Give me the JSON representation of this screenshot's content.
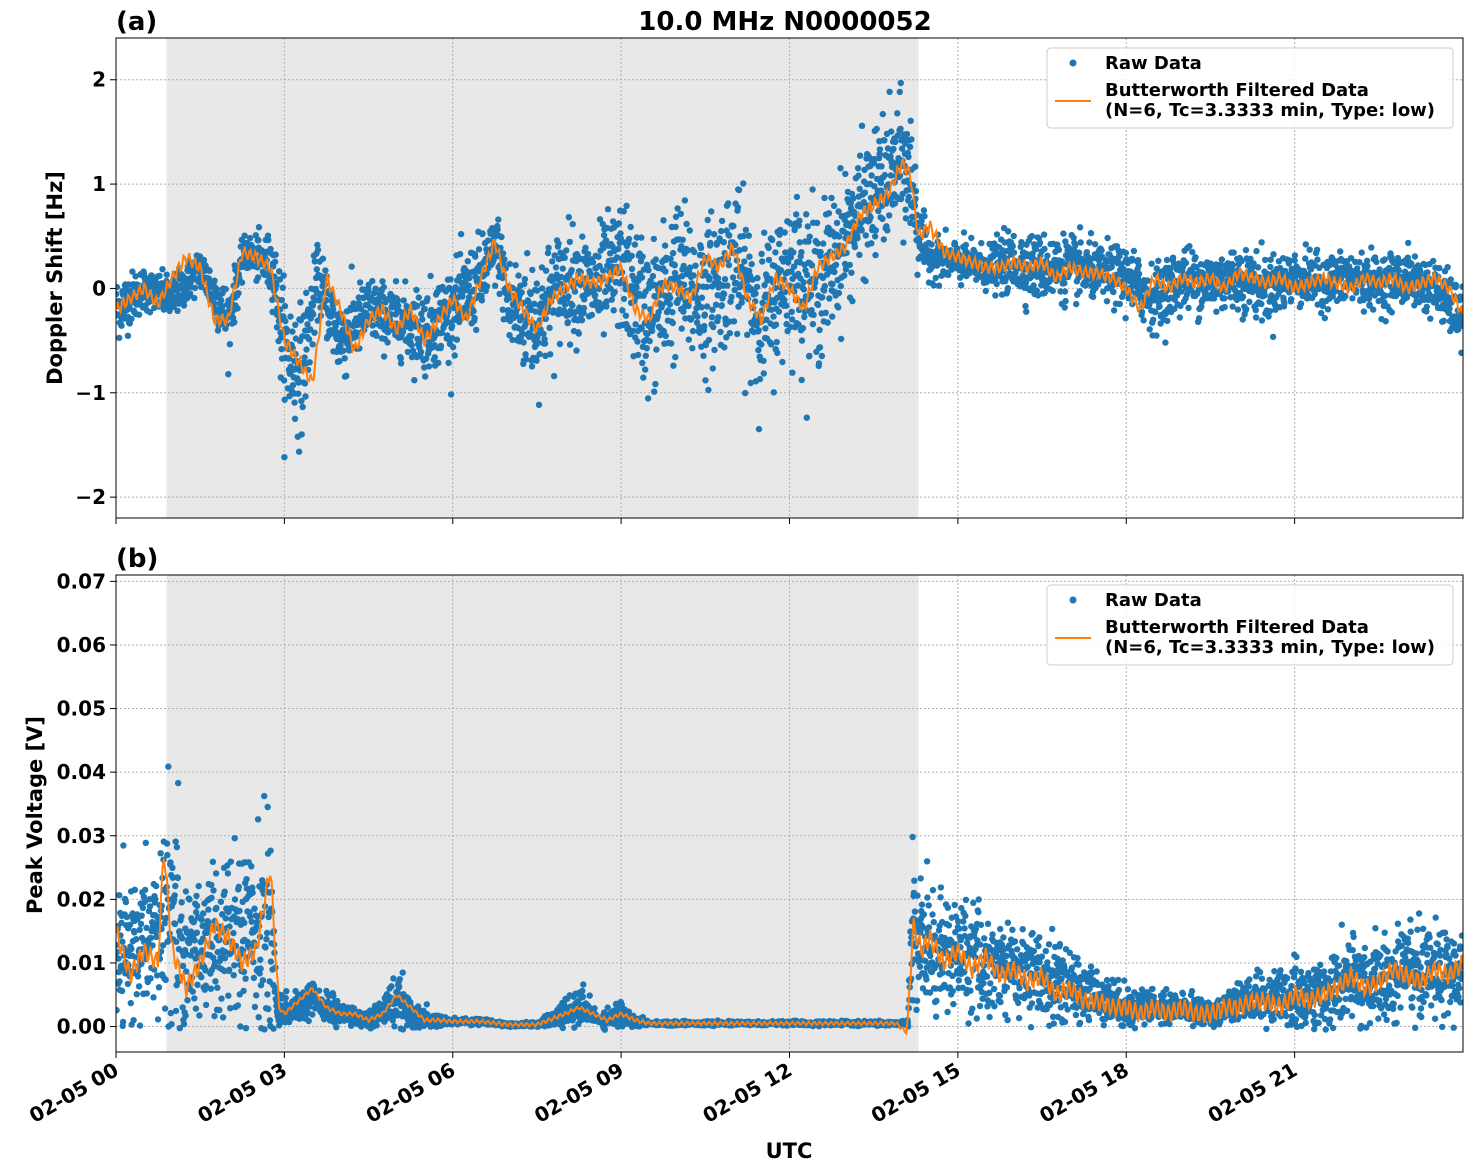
{
  "figure": {
    "title": "10.0 MHz N0000052",
    "xlabel": "UTC",
    "colors": {
      "raw": "#1f77b4",
      "filtered": "#ff7f0e",
      "shade": "#e8e8e8",
      "grid": "#b0b0b0"
    }
  },
  "chart_data": [
    {
      "type": "scatter",
      "panel_label": "(a)",
      "title": "10.0 MHz N0000052",
      "xlabel": "",
      "ylabel": "Doppler Shift [Hz]",
      "x_unit": "hours UTC on 02-05",
      "xlim": [
        0,
        24
      ],
      "ylim": [
        -2.2,
        2.4
      ],
      "yticks": [
        -2,
        -1,
        0,
        1,
        2
      ],
      "ytick_labels": [
        "−2",
        "−1",
        "0",
        "1",
        "2"
      ],
      "grid": true,
      "legend_position": "top-right",
      "shaded_region": [
        0.9,
        14.3
      ],
      "series": [
        {
          "name": "Raw Data",
          "style": "points",
          "x": [
            0,
            0.5,
            1,
            1.5,
            2,
            2.3,
            2.8,
            3,
            3.3,
            3.6,
            4,
            4.5,
            5,
            5.5,
            6,
            6.5,
            6.8,
            7,
            7.5,
            8,
            8.5,
            9,
            9.5,
            10,
            10.5,
            11,
            11.5,
            12,
            12.5,
            13,
            13.5,
            14,
            14.2,
            14.3,
            14.5,
            15,
            15.5,
            16,
            16.5,
            17,
            17.5,
            18,
            18.5,
            19,
            19.5,
            20,
            20.5,
            21,
            21.5,
            22,
            22.5,
            23,
            23.5,
            24
          ],
          "y_center": [
            -0.2,
            0.0,
            -0.1,
            0.2,
            -0.3,
            0.35,
            0.2,
            -0.6,
            -0.8,
            0.1,
            -0.5,
            -0.2,
            -0.3,
            -0.4,
            -0.2,
            0.1,
            0.4,
            -0.2,
            -0.3,
            0.1,
            0.0,
            0.2,
            -0.3,
            0.1,
            -0.1,
            0.3,
            -0.3,
            0.2,
            0.0,
            0.5,
            0.9,
            1.2,
            1.0,
            0.5,
            0.3,
            0.25,
            0.2,
            0.25,
            0.2,
            0.2,
            0.15,
            0.1,
            -0.1,
            0.1,
            0.05,
            0.1,
            0.0,
            0.1,
            0.05,
            0.1,
            0.05,
            0.1,
            0.0,
            -0.3
          ],
          "y_spread": [
            0.3,
            0.2,
            0.2,
            0.2,
            0.3,
            0.15,
            0.3,
            0.6,
            0.6,
            0.3,
            0.4,
            0.3,
            0.3,
            0.4,
            0.4,
            0.4,
            0.3,
            0.5,
            0.6,
            0.5,
            0.5,
            0.6,
            0.7,
            0.7,
            0.7,
            0.7,
            0.7,
            0.7,
            0.7,
            0.6,
            0.6,
            0.6,
            0.7,
            0.3,
            0.2,
            0.2,
            0.2,
            0.3,
            0.3,
            0.3,
            0.25,
            0.3,
            0.3,
            0.3,
            0.3,
            0.3,
            0.3,
            0.25,
            0.25,
            0.25,
            0.25,
            0.25,
            0.25,
            0.3
          ]
        },
        {
          "name": "Butterworth Filtered Data\n(N=6, Tc=3.3333 min, Type: low)",
          "style": "line",
          "x": [
            0,
            0.25,
            0.5,
            0.75,
            1,
            1.25,
            1.5,
            1.75,
            2,
            2.25,
            2.5,
            2.75,
            3,
            3.25,
            3.5,
            3.75,
            4,
            4.25,
            4.5,
            4.75,
            5,
            5.25,
            5.5,
            5.75,
            6,
            6.25,
            6.5,
            6.75,
            7,
            7.25,
            7.5,
            7.75,
            8,
            8.25,
            8.5,
            8.75,
            9,
            9.25,
            9.5,
            9.75,
            10,
            10.25,
            10.5,
            10.75,
            11,
            11.25,
            11.5,
            11.75,
            12,
            12.25,
            12.5,
            12.75,
            13,
            13.25,
            13.5,
            13.75,
            14,
            14.15,
            14.3,
            14.5,
            14.75,
            15,
            15.25,
            15.5,
            15.75,
            16,
            16.25,
            16.5,
            16.75,
            17,
            17.25,
            17.5,
            17.75,
            18,
            18.25,
            18.5,
            18.75,
            19,
            19.25,
            19.5,
            19.75,
            20,
            20.25,
            20.5,
            20.75,
            21,
            21.25,
            21.5,
            21.75,
            22,
            22.25,
            22.5,
            22.75,
            23,
            23.25,
            23.5,
            23.75,
            24
          ],
          "y": [
            -0.2,
            -0.1,
            0.0,
            -0.15,
            0.1,
            0.3,
            0.2,
            -0.3,
            -0.3,
            0.35,
            0.3,
            0.2,
            -0.5,
            -0.7,
            -0.9,
            0.1,
            -0.2,
            -0.6,
            -0.3,
            -0.2,
            -0.4,
            -0.2,
            -0.5,
            -0.3,
            -0.1,
            -0.3,
            0.1,
            0.45,
            0.0,
            -0.2,
            -0.4,
            -0.1,
            0.0,
            0.1,
            0.05,
            0.1,
            0.2,
            -0.2,
            -0.3,
            0.05,
            0.0,
            -0.1,
            0.3,
            0.2,
            0.4,
            -0.1,
            -0.3,
            0.1,
            0.0,
            -0.2,
            0.2,
            0.3,
            0.4,
            0.7,
            0.8,
            0.9,
            1.2,
            1.1,
            0.5,
            0.6,
            0.35,
            0.3,
            0.25,
            0.2,
            0.2,
            0.25,
            0.2,
            0.25,
            0.1,
            0.2,
            0.15,
            0.15,
            0.1,
            0.0,
            -0.2,
            0.1,
            0.0,
            0.1,
            0.05,
            0.1,
            0.0,
            0.15,
            0.1,
            0.05,
            0.1,
            0.0,
            0.05,
            0.1,
            0.05,
            0.0,
            0.1,
            0.05,
            0.1,
            0.0,
            0.05,
            0.1,
            0.0,
            -0.25
          ]
        }
      ]
    },
    {
      "type": "scatter",
      "panel_label": "(b)",
      "title": "",
      "xlabel": "UTC",
      "ylabel": "Peak Voltage [V]",
      "x_unit": "hours UTC on 02-05",
      "xlim": [
        0,
        24
      ],
      "ylim": [
        -0.004,
        0.071
      ],
      "yticks": [
        0.0,
        0.01,
        0.02,
        0.03,
        0.04,
        0.05,
        0.06,
        0.07
      ],
      "ytick_labels": [
        "0.00",
        "0.01",
        "0.02",
        "0.03",
        "0.04",
        "0.05",
        "0.06",
        "0.07"
      ],
      "xticks": [
        0,
        3,
        6,
        9,
        12,
        15,
        18,
        21
      ],
      "xtick_labels": [
        "02-05 00",
        "02-05 03",
        "02-05 06",
        "02-05 09",
        "02-05 12",
        "02-05 15",
        "02-05 18",
        "02-05 21"
      ],
      "grid": true,
      "legend_position": "top-right",
      "shaded_region": [
        0.9,
        14.3
      ],
      "series": [
        {
          "name": "Raw Data",
          "style": "points",
          "x": [
            0,
            0.4,
            0.8,
            0.9,
            1.2,
            1.6,
            2.0,
            2.4,
            2.75,
            2.85,
            3.0,
            3.5,
            4.0,
            4.5,
            5.0,
            5.3,
            5.6,
            6.0,
            6.5,
            7.0,
            7.5,
            8.0,
            8.3,
            8.6,
            9.0,
            9.2,
            9.5,
            10,
            11,
            12,
            13,
            13.9,
            14.1,
            14.2,
            14.5,
            15,
            15.5,
            16,
            16.5,
            17,
            17.5,
            18,
            18.5,
            19,
            19.5,
            20,
            20.5,
            21,
            21.5,
            22,
            22.5,
            23,
            23.5,
            24
          ],
          "y_center": [
            0.01,
            0.012,
            0.015,
            0.02,
            0.012,
            0.013,
            0.015,
            0.014,
            0.016,
            0.003,
            0.002,
            0.004,
            0.002,
            0.001,
            0.004,
            0.002,
            0.001,
            0.0008,
            0.0008,
            0.0003,
            0.0003,
            0.002,
            0.003,
            0.001,
            0.002,
            0.001,
            0.0005,
            0.0005,
            0.0005,
            0.0005,
            0.0005,
            0.0005,
            0.0005,
            0.015,
            0.012,
            0.011,
            0.01,
            0.009,
            0.008,
            0.006,
            0.005,
            0.003,
            0.003,
            0.003,
            0.002,
            0.004,
            0.004,
            0.005,
            0.005,
            0.007,
            0.007,
            0.008,
            0.008,
            0.008
          ],
          "y_spread": [
            0.01,
            0.01,
            0.014,
            0.02,
            0.012,
            0.012,
            0.012,
            0.012,
            0.02,
            0.003,
            0.002,
            0.003,
            0.002,
            0.001,
            0.004,
            0.002,
            0.001,
            0.0005,
            0.0005,
            0.0003,
            0.0003,
            0.002,
            0.003,
            0.001,
            0.002,
            0.001,
            0.0003,
            0.0003,
            0.0003,
            0.0003,
            0.0003,
            0.0003,
            0.0003,
            0.012,
            0.01,
            0.008,
            0.008,
            0.007,
            0.007,
            0.005,
            0.004,
            0.003,
            0.003,
            0.002,
            0.002,
            0.003,
            0.004,
            0.005,
            0.005,
            0.007,
            0.007,
            0.007,
            0.007,
            0.006
          ]
        },
        {
          "name": "Butterworth Filtered Data\n(N=6, Tc=3.3333 min, Type: low)",
          "style": "line",
          "x": [
            0,
            0.25,
            0.5,
            0.75,
            0.85,
            1.0,
            1.25,
            1.5,
            1.75,
            2.0,
            2.25,
            2.5,
            2.75,
            2.9,
            3.0,
            3.25,
            3.5,
            3.75,
            4.0,
            4.25,
            4.5,
            4.75,
            5.0,
            5.25,
            5.5,
            5.75,
            6.0,
            6.5,
            7.0,
            7.5,
            8.0,
            8.25,
            8.5,
            8.75,
            9.0,
            9.25,
            9.5,
            10,
            11,
            12,
            13,
            13.9,
            14.1,
            14.2,
            14.35,
            14.5,
            14.75,
            15,
            15.25,
            15.5,
            15.75,
            16,
            16.25,
            16.5,
            16.75,
            17,
            17.25,
            17.5,
            17.75,
            18,
            18.25,
            18.5,
            18.75,
            19,
            19.25,
            19.5,
            19.75,
            20,
            20.25,
            20.5,
            20.75,
            21,
            21.25,
            21.5,
            21.75,
            22,
            22.25,
            22.5,
            22.75,
            23,
            23.25,
            23.5,
            23.75,
            24
          ],
          "y": [
            0.015,
            0.008,
            0.012,
            0.01,
            0.028,
            0.012,
            0.006,
            0.01,
            0.016,
            0.014,
            0.01,
            0.012,
            0.025,
            0.003,
            0.002,
            0.004,
            0.006,
            0.003,
            0.002,
            0.002,
            0.001,
            0.002,
            0.005,
            0.003,
            0.001,
            0.001,
            0.0008,
            0.0008,
            0.0003,
            0.0003,
            0.002,
            0.003,
            0.002,
            0.001,
            0.002,
            0.001,
            0.0005,
            0.0005,
            0.0005,
            0.0005,
            0.0005,
            0.0005,
            -0.001,
            0.016,
            0.012,
            0.014,
            0.01,
            0.012,
            0.009,
            0.011,
            0.008,
            0.009,
            0.007,
            0.008,
            0.005,
            0.006,
            0.004,
            0.004,
            0.003,
            0.003,
            0.002,
            0.003,
            0.002,
            0.003,
            0.002,
            0.002,
            0.003,
            0.003,
            0.004,
            0.004,
            0.003,
            0.005,
            0.004,
            0.005,
            0.006,
            0.008,
            0.006,
            0.007,
            0.009,
            0.008,
            0.007,
            0.009,
            0.008,
            0.01
          ]
        }
      ]
    }
  ]
}
